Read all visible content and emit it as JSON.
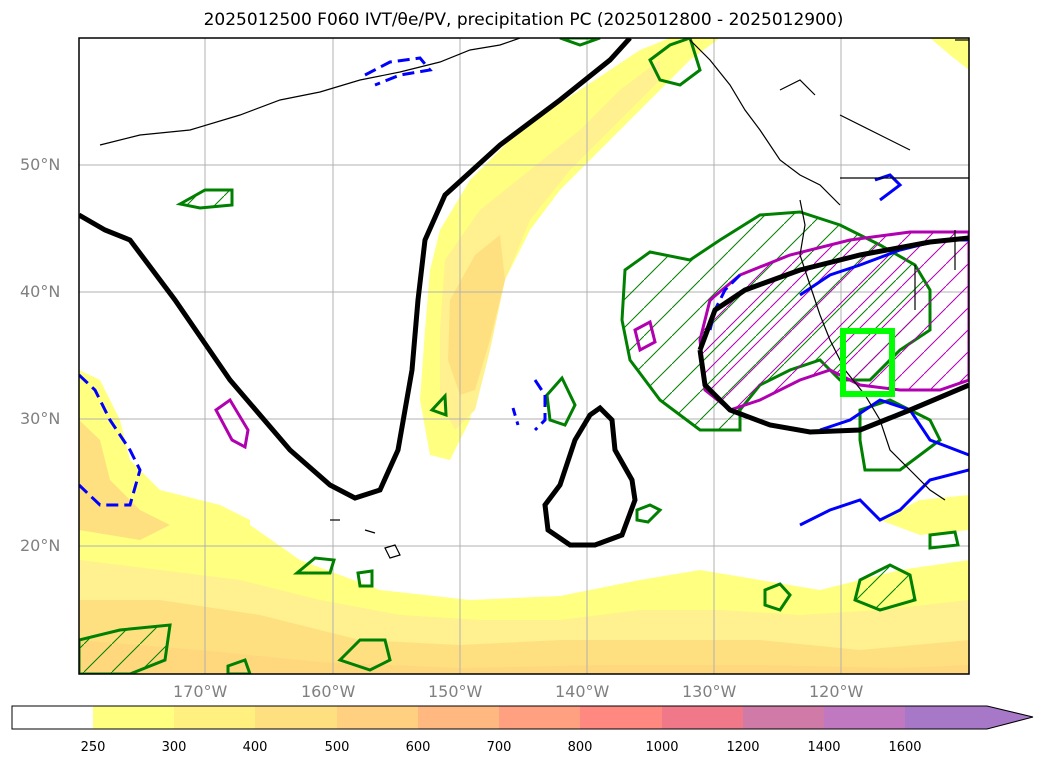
{
  "title": "2025012500 F060 IVT/θe/PV, precipitation PC (2025012800 - 2025012900)",
  "latitudes": [
    "50°N",
    "40°N",
    "30°N",
    "20°N"
  ],
  "longitudes": [
    "170°W",
    "160°W",
    "150°W",
    "140°W",
    "130°W",
    "120°W"
  ],
  "colorbar": {
    "levels": [
      "250",
      "300",
      "400",
      "500",
      "600",
      "700",
      "800",
      "1000",
      "1200",
      "1400",
      "1600"
    ],
    "colors": [
      "#ffffff",
      "#ffff80",
      "#fff080",
      "#ffe080",
      "#ffd080",
      "#ffb880",
      "#ffa080",
      "#ff8880",
      "#f07888",
      "#d07aa8",
      "#c078c0",
      "#a878c8"
    ]
  },
  "colors": {
    "ivt_low": "#ffff80",
    "ivt_mid": "#ffe080",
    "ivt_high": "#ffd07a",
    "theta_e": "#000000",
    "precip": "#008000",
    "pv": "#0000ff",
    "magenta": "#b000b0",
    "target_box": "#00ff00"
  }
}
